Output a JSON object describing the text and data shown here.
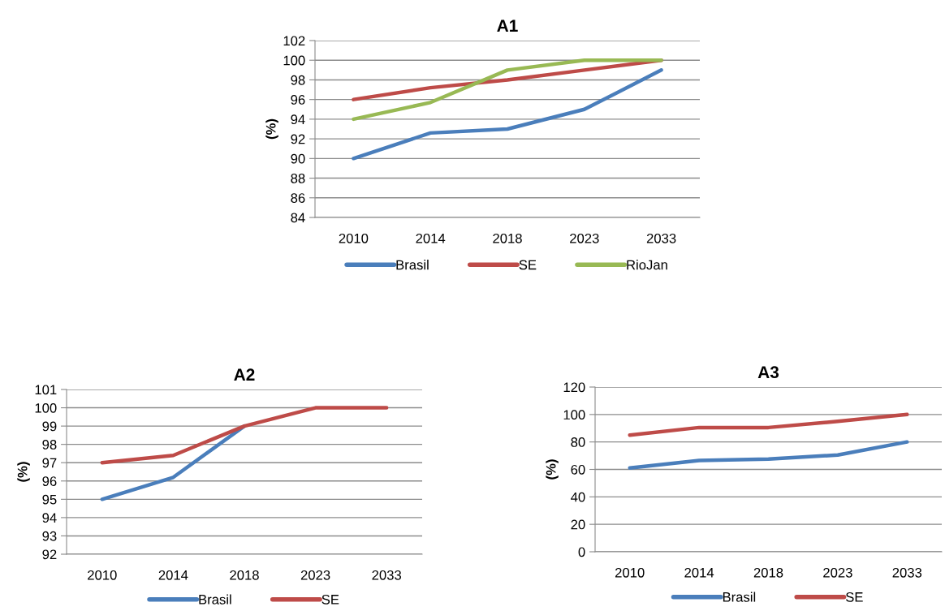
{
  "chart_data": [
    {
      "type": "line",
      "title": "A1",
      "ylabel": "(%)",
      "categories": [
        "2010",
        "2014",
        "2018",
        "2023",
        "2033"
      ],
      "ylim": [
        84,
        102
      ],
      "yticks": [
        84,
        86,
        88,
        90,
        92,
        94,
        96,
        98,
        100,
        102
      ],
      "grid": "y",
      "legend": "bottom",
      "marker": "none",
      "line_style": "solid",
      "series": [
        {
          "name": "Brasil",
          "color": "#4a7ebb",
          "values": [
            90,
            92.6,
            93,
            95,
            99
          ]
        },
        {
          "name": "SE",
          "color": "#be4b48",
          "values": [
            96,
            97.2,
            98,
            99,
            100
          ]
        },
        {
          "name": "RioJan",
          "color": "#98b954",
          "values": [
            94,
            95.7,
            99,
            100,
            100
          ]
        }
      ]
    },
    {
      "type": "line",
      "title": "A2",
      "ylabel": "(%)",
      "categories": [
        "2010",
        "2014",
        "2018",
        "2023",
        "2033"
      ],
      "ylim": [
        92,
        101
      ],
      "yticks": [
        92,
        93,
        94,
        95,
        96,
        97,
        98,
        99,
        100,
        101
      ],
      "grid": "y",
      "legend": "bottom",
      "marker": "none",
      "line_style": "solid",
      "series": [
        {
          "name": "Brasil",
          "color": "#4a7ebb",
          "values": [
            95,
            96.2,
            99,
            null,
            null
          ]
        },
        {
          "name": "SE",
          "color": "#be4b48",
          "values": [
            97,
            97.4,
            99,
            100,
            100
          ]
        }
      ]
    },
    {
      "type": "line",
      "title": "A3",
      "ylabel": "(%)",
      "categories": [
        "2010",
        "2014",
        "2018",
        "2023",
        "2033"
      ],
      "ylim": [
        0,
        120
      ],
      "yticks": [
        0,
        20,
        40,
        60,
        80,
        100,
        120
      ],
      "grid": "y",
      "legend": "bottom",
      "marker": "none",
      "line_style": "solid",
      "series": [
        {
          "name": "Brasil",
          "color": "#4a7ebb",
          "values": [
            61,
            66.5,
            67.5,
            70.5,
            80
          ]
        },
        {
          "name": "SE",
          "color": "#be4b48",
          "values": [
            85,
            90.5,
            90.5,
            95,
            100
          ]
        }
      ]
    }
  ]
}
